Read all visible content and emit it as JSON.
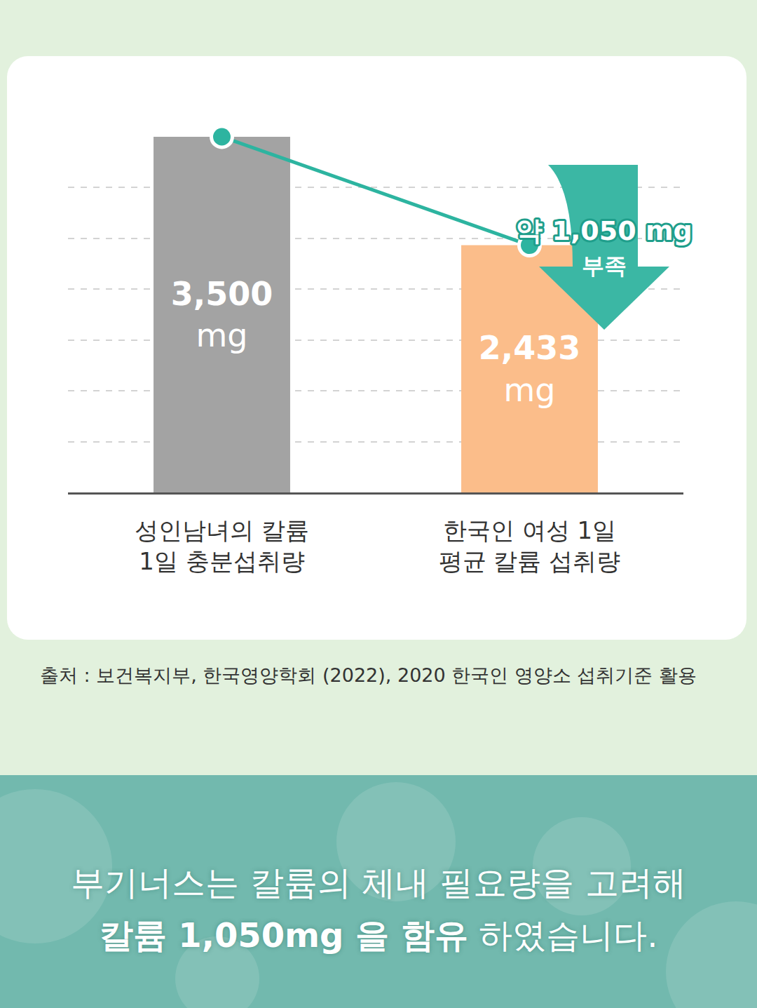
{
  "chart_data": {
    "type": "bar",
    "categories": [
      "성인남녀의 칼륨 1일 충분섭취량",
      "한국인 여성 1일 평균 칼륨 섭취량"
    ],
    "series": [
      {
        "type": "bar",
        "values": [
          3500,
          2433
        ],
        "value_labels": [
          "3,500 mg",
          "2,433 mg"
        ],
        "colors": [
          "#a3a3a3",
          "#fbbd8a"
        ]
      },
      {
        "type": "line",
        "values": [
          3500,
          2433
        ],
        "color": "#2db4a0",
        "marker": "circle"
      }
    ],
    "ylim": [
      0,
      3500
    ],
    "yticks": [
      0,
      500,
      1000,
      1500,
      2000,
      2500,
      3000,
      3500
    ],
    "grid": true,
    "data_labels": true,
    "tick_labels": "x",
    "annotations": [
      {
        "text": "약 1,050 mg 부족",
        "color": "#3bb7a4"
      }
    ]
  },
  "source": "출처 : 보건복지부, 한국영양학회 (2022), 2020 한국인 영양소 섭취기준 활용",
  "banner": {
    "text": "부기너스는 칼륨의 체내 필요량을 고려해",
    "emphasis": "칼륨 1,050mg 을 함유",
    "text_end": "하였습니다."
  }
}
